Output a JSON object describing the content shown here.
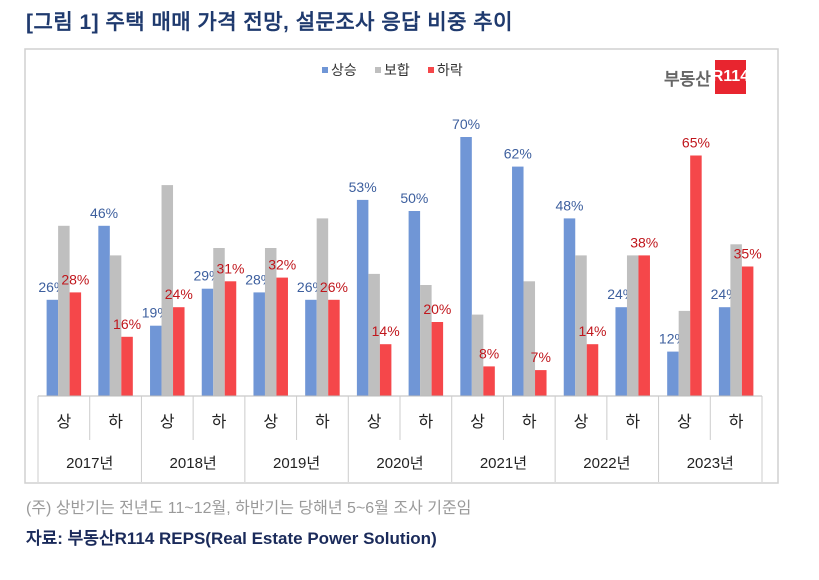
{
  "title": "[그림 1] 주택 매매 가격 전망, 설문조사 응답 비중 추이",
  "logo": {
    "text": "부동산",
    "box": "R114"
  },
  "note": "(주) 상반기는 전년도 11~12월, 하반기는 당해년 5~6월 조사 기준임",
  "source": "자료: 부동산R114 REPS(Real Estate Power Solution)",
  "chart_data": {
    "type": "bar",
    "legend_position": "top",
    "grid": false,
    "ylim": [
      0,
      75
    ],
    "categories": [
      "상",
      "하",
      "상",
      "하",
      "상",
      "하",
      "상",
      "하",
      "상",
      "하",
      "상",
      "하",
      "상",
      "하"
    ],
    "years": [
      "2017년",
      "2018년",
      "2019년",
      "2020년",
      "2021년",
      "2022년",
      "2023년"
    ],
    "series": [
      {
        "name": "상승",
        "color": "#7096d6",
        "label_color": "#3d5f9e",
        "labeled": true,
        "values": [
          26,
          46,
          19,
          29,
          28,
          26,
          53,
          50,
          70,
          62,
          48,
          24,
          12,
          24
        ]
      },
      {
        "name": "보합",
        "color": "#bfbfbf",
        "labeled": false,
        "values": [
          46,
          38,
          57,
          40,
          40,
          48,
          33,
          30,
          22,
          31,
          38,
          38,
          23,
          41
        ]
      },
      {
        "name": "하락",
        "color": "#f5474a",
        "label_color": "#c0161c",
        "labeled": true,
        "values": [
          28,
          16,
          24,
          31,
          32,
          26,
          14,
          20,
          8,
          7,
          14,
          38,
          65,
          35
        ]
      }
    ]
  }
}
